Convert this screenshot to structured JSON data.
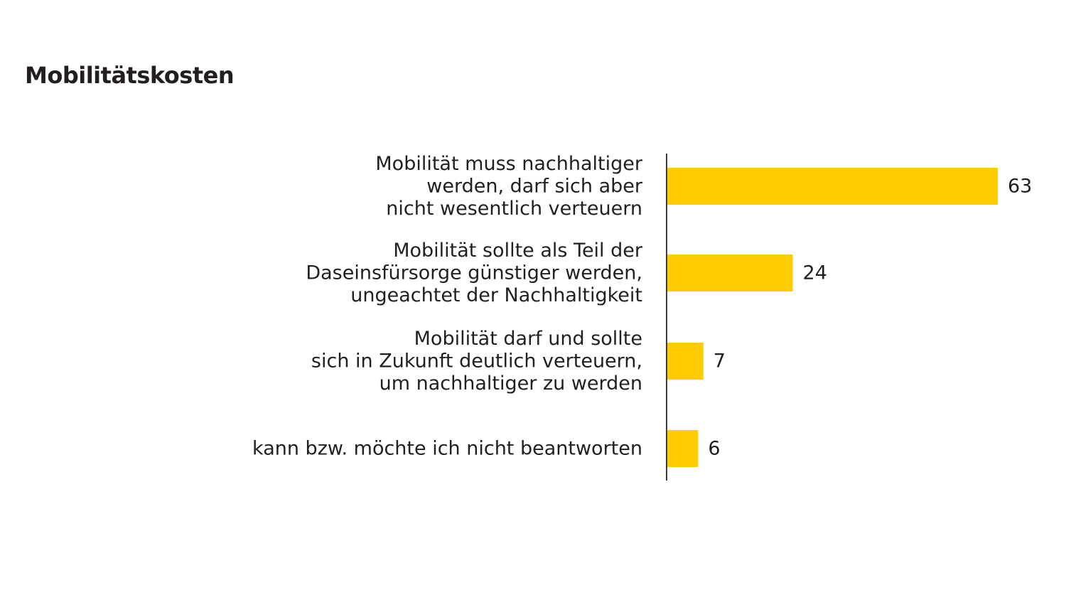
{
  "title": "Mobilitätskosten",
  "colors": {
    "bar": "#fecc00",
    "axis": "#3d3d3d",
    "text": "#231f20"
  },
  "chart_data": {
    "type": "bar",
    "orientation": "horizontal",
    "title": "Mobilitätskosten",
    "xlabel": "",
    "ylabel": "",
    "grid": false,
    "legend": "none",
    "xlim": [
      0,
      63
    ],
    "categories": [
      [
        "Mobilität muss nachhaltiger",
        "werden, darf sich aber",
        "nicht wesentlich verteuern"
      ],
      [
        "Mobilität sollte als Teil der",
        "Daseinsfürsorge günstiger werden,",
        "ungeachtet der Nachhaltigkeit"
      ],
      [
        "Mobilität darf und sollte",
        "sich in Zukunft deutlich verteuern,",
        "um nachhaltiger zu werden"
      ],
      [
        "kann bzw. möchte ich nicht beantworten"
      ]
    ],
    "values": [
      63,
      24,
      7,
      6
    ],
    "value_labels": [
      "63",
      "24",
      "7",
      "6"
    ]
  }
}
